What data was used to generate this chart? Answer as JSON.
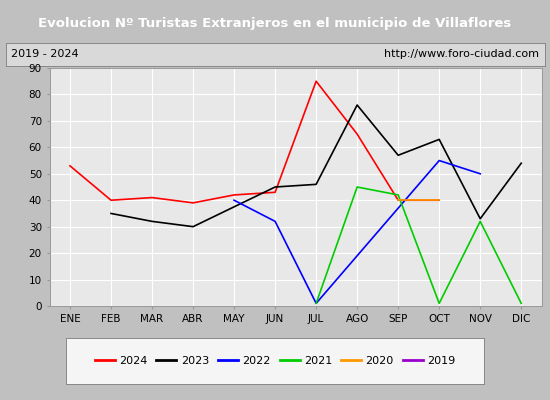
{
  "title": "Evolucion Nº Turistas Extranjeros en el municipio de Villaflores",
  "subtitle_left": "2019 - 2024",
  "subtitle_right": "http://www.foro-ciudad.com",
  "months": [
    "ENE",
    "FEB",
    "MAR",
    "ABR",
    "MAY",
    "JUN",
    "JUL",
    "AGO",
    "SEP",
    "OCT",
    "NOV",
    "DIC"
  ],
  "series": {
    "2024": [
      53,
      40,
      41,
      39,
      42,
      43,
      85,
      65,
      40,
      40,
      null,
      null
    ],
    "2023": [
      null,
      35,
      32,
      30,
      null,
      45,
      46,
      76,
      57,
      63,
      33,
      54
    ],
    "2022": [
      null,
      null,
      null,
      null,
      40,
      32,
      1,
      null,
      null,
      55,
      50,
      null
    ],
    "2021": [
      null,
      null,
      null,
      null,
      null,
      null,
      1,
      45,
      42,
      1,
      32,
      1
    ],
    "2020": [
      null,
      null,
      null,
      null,
      null,
      null,
      null,
      null,
      40,
      40,
      null,
      null
    ],
    "2019": [
      null,
      null,
      null,
      null,
      null,
      null,
      null,
      null,
      null,
      null,
      null,
      null
    ]
  },
  "colors": {
    "2024": "#ff0000",
    "2023": "#000000",
    "2022": "#0000ff",
    "2021": "#00cc00",
    "2020": "#ff9900",
    "2019": "#9900cc"
  },
  "ylim": [
    0,
    90
  ],
  "yticks": [
    0,
    10,
    20,
    30,
    40,
    50,
    60,
    70,
    80,
    90
  ],
  "title_bg": "#4f81bd",
  "title_color": "#ffffff",
  "subtitle_bg": "#d9d9d9",
  "plot_bg": "#e8e8e8",
  "grid_color": "#ffffff",
  "outer_bg": "#c0c0c0"
}
